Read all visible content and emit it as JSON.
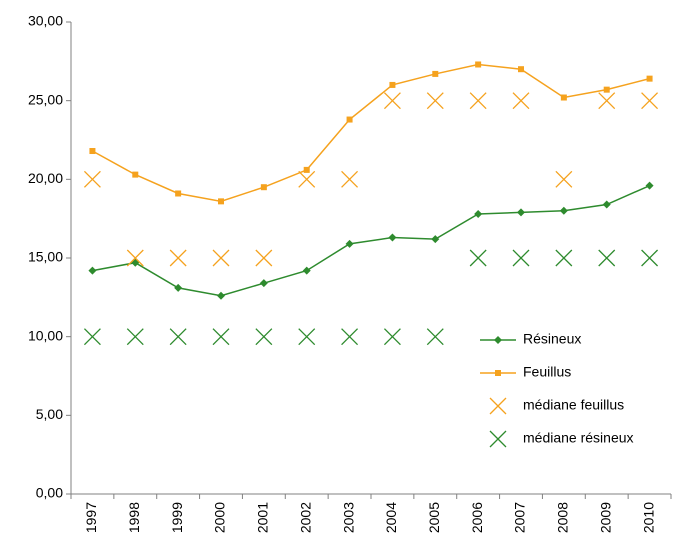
{
  "chart_data": {
    "type": "line",
    "categories": [
      "1997",
      "1998",
      "1999",
      "2000",
      "2001",
      "2002",
      "2003",
      "2004",
      "2005",
      "2006",
      "2007",
      "2008",
      "2009",
      "2010"
    ],
    "series": [
      {
        "name": "Résineux",
        "color": "#2e8b2e",
        "line": true,
        "marker": "diamond",
        "values": [
          14.2,
          14.7,
          13.1,
          12.6,
          13.4,
          14.2,
          15.9,
          16.3,
          16.2,
          17.8,
          17.9,
          18.0,
          18.4,
          19.6
        ]
      },
      {
        "name": "Feuillus",
        "color": "#f5a21e",
        "line": true,
        "marker": "square",
        "values": [
          21.8,
          20.3,
          19.1,
          18.6,
          19.5,
          20.6,
          23.8,
          26.0,
          26.7,
          27.3,
          27.0,
          25.2,
          25.7,
          26.4
        ]
      },
      {
        "name": "médiane feuillus",
        "color": "#f5a21e",
        "line": false,
        "marker": "x",
        "values": [
          20,
          15,
          15,
          15,
          15,
          20,
          20,
          25,
          25,
          25,
          25,
          20,
          25,
          25
        ]
      },
      {
        "name": "médiane résineux",
        "color": "#2e8b2e",
        "line": false,
        "marker": "x",
        "values": [
          10,
          10,
          10,
          10,
          10,
          10,
          10,
          10,
          10,
          15,
          15,
          15,
          15,
          15
        ]
      }
    ],
    "ylim": [
      0,
      30
    ],
    "yticks": [
      {
        "value": 0,
        "label": "0,00"
      },
      {
        "value": 5,
        "label": "5,00"
      },
      {
        "value": 10,
        "label": "10,00"
      },
      {
        "value": 15,
        "label": "15,00"
      },
      {
        "value": 20,
        "label": "20,00"
      },
      {
        "value": 25,
        "label": "25,00"
      },
      {
        "value": 30,
        "label": "30,00"
      }
    ],
    "grid": false,
    "legend": "right"
  }
}
